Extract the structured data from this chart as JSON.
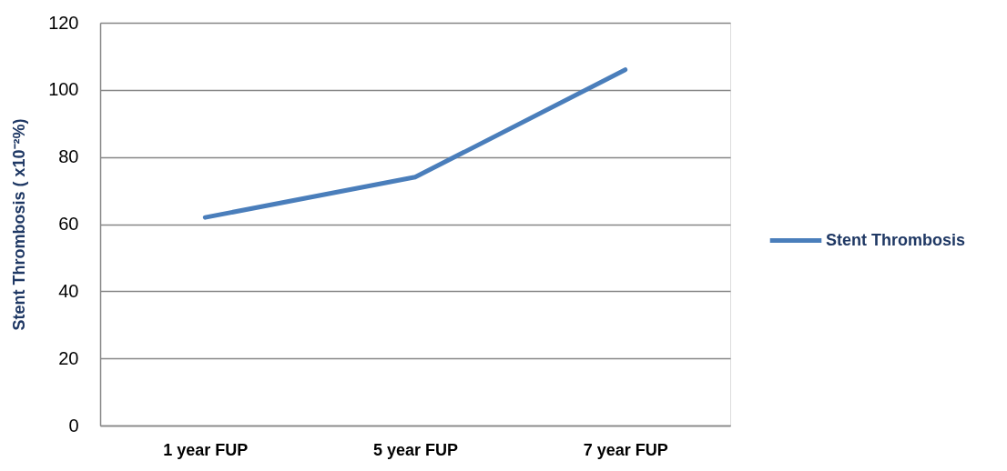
{
  "chart_data": {
    "type": "line",
    "categories": [
      "1 year FUP",
      "5 year FUP",
      "7 year FUP"
    ],
    "series": [
      {
        "name": "Stent Thrombosis",
        "color": "#4a7ebb",
        "values": [
          62,
          74,
          106
        ]
      }
    ],
    "ylabel": "Stent Thrombosis ( x10⁻²%)",
    "ylim": [
      0,
      120
    ],
    "yticks": [
      0,
      20,
      40,
      60,
      80,
      100,
      120
    ],
    "grid": "y",
    "legend": "right",
    "line_style": "solid"
  }
}
